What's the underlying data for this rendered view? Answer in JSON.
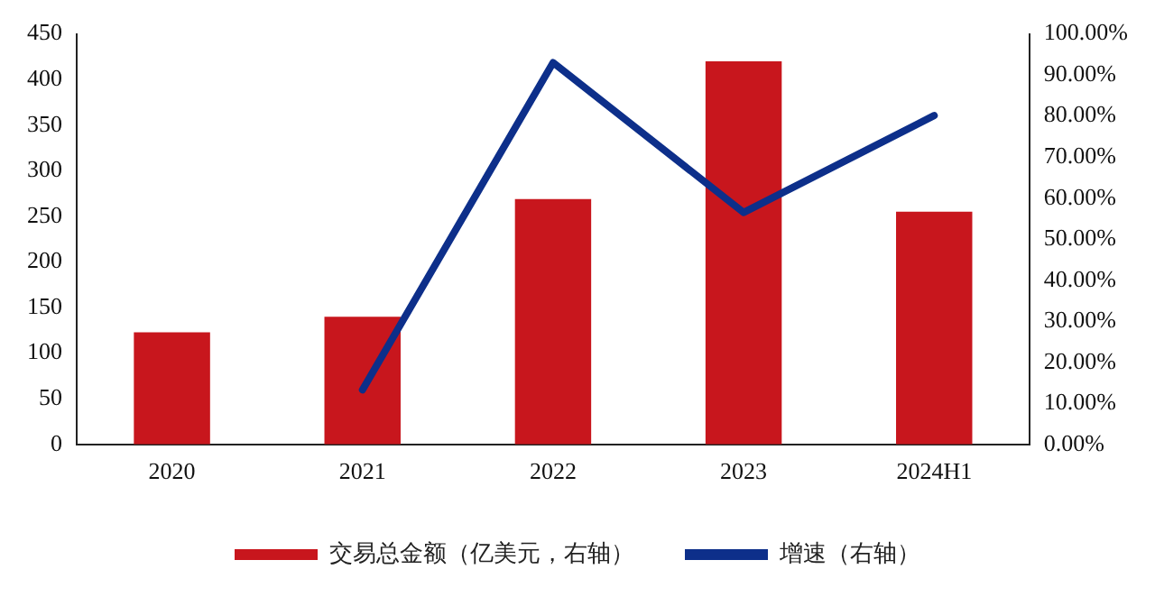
{
  "chart_data": {
    "type": "bar",
    "categories": [
      "2020",
      "2021",
      "2022",
      "2023",
      "2024H1"
    ],
    "series": [
      {
        "name": "交易总金额（亿美元，右轴）",
        "color": "#c8161d",
        "values": [
          123,
          140,
          269,
          420,
          255
        ]
      },
      {
        "name": "增速（右轴）",
        "type": "line",
        "axis": "y2",
        "color": "#0d2f8a",
        "values": [
          null,
          13.3,
          93,
          56.5,
          80.1
        ]
      }
    ],
    "ylim": [
      0,
      450
    ],
    "yticks": [
      0,
      50,
      100,
      150,
      200,
      250,
      300,
      350,
      400,
      450
    ],
    "y2lim": [
      0,
      100
    ],
    "y2ticks": [
      {
        "value": 0,
        "label": "0.00%"
      },
      {
        "value": 10,
        "label": "10.00%"
      },
      {
        "value": 20,
        "label": "20.00%"
      },
      {
        "value": 30,
        "label": "30.00%"
      },
      {
        "value": 40,
        "label": "40.00%"
      },
      {
        "value": 50,
        "label": "50.00%"
      },
      {
        "value": 60,
        "label": "60.00%"
      },
      {
        "value": 70,
        "label": "70.00%"
      },
      {
        "value": 80,
        "label": "80.00%"
      },
      {
        "value": 90,
        "label": "90.00%"
      },
      {
        "value": 100,
        "label": "100.00%"
      }
    ],
    "grid": false,
    "legend": "bottom",
    "marker": "none"
  }
}
